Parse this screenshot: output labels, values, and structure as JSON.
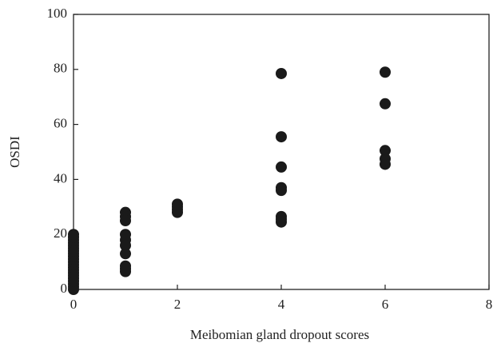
{
  "chart_data": {
    "type": "scatter",
    "x_label": "Meibomian gland dropout scores",
    "y_label": "OSDI",
    "x": [
      0,
      0,
      0,
      0,
      0,
      0,
      0,
      0,
      0,
      0,
      0,
      0,
      0,
      0,
      0,
      0,
      0,
      0,
      0,
      0,
      0,
      1,
      1,
      1,
      1,
      1,
      1,
      1,
      1,
      1,
      1,
      2,
      2,
      2,
      2,
      4,
      4,
      4,
      4,
      4,
      4,
      4,
      4,
      6,
      6,
      6,
      6,
      6
    ],
    "values": [
      0,
      1,
      2,
      3,
      4,
      5,
      6,
      7,
      8,
      9,
      10,
      11,
      12,
      13,
      14,
      15,
      16,
      17,
      18,
      19,
      20,
      28,
      26.5,
      25,
      20,
      18,
      16,
      13,
      8.5,
      7.5,
      6.5,
      31,
      30,
      29,
      28,
      78.5,
      55.5,
      44.5,
      37,
      36,
      26.5,
      25.5,
      24.5,
      79,
      67.5,
      50.5,
      47.5,
      45.5
    ],
    "color": "#1a1a1a",
    "xlim": [
      0,
      8
    ],
    "xticks": [
      0,
      2,
      4,
      6,
      8
    ],
    "ylim": [
      0,
      100
    ],
    "yticks": [
      0,
      20,
      40,
      60,
      80,
      100
    ]
  }
}
